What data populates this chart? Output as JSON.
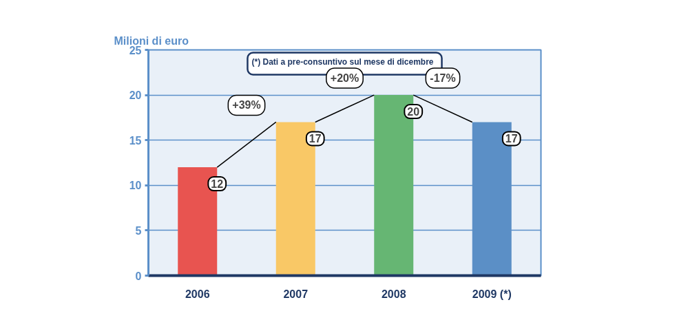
{
  "chart_data": {
    "type": "bar",
    "ylabel": "Milioni di euro",
    "categories": [
      "2006",
      "2007",
      "2008",
      "2009 (*)"
    ],
    "values": [
      12,
      17,
      20,
      17
    ],
    "colors": [
      "#e85450",
      "#f9c866",
      "#66b673",
      "#5b8fc6"
    ],
    "ylim": [
      0,
      25
    ],
    "yticks": [
      0,
      5,
      10,
      15,
      20,
      25
    ],
    "grid": "y",
    "data_labels": true,
    "annotations": [
      "(*) Dati a pre-consuntivo sul mese di dicembre",
      "+39%",
      "+20%",
      "-17%"
    ]
  }
}
